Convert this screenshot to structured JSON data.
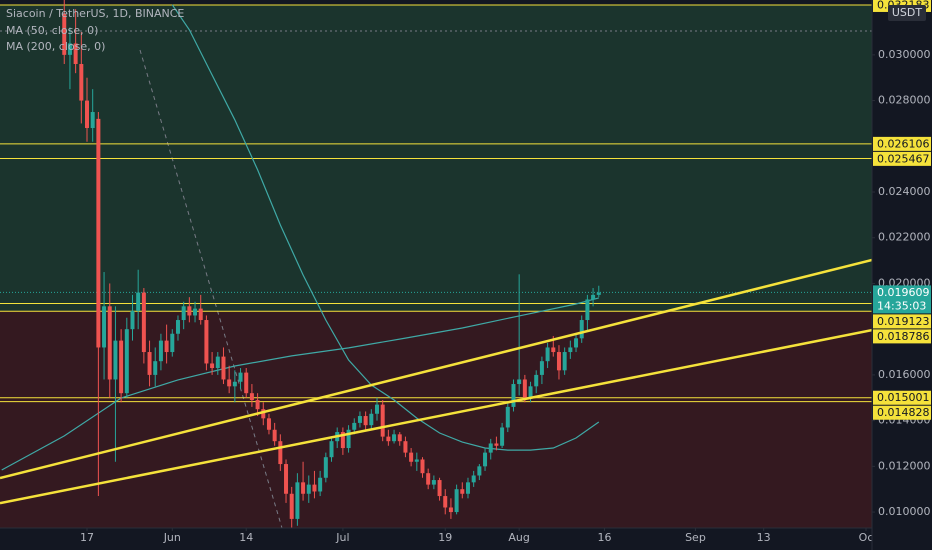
{
  "chart_data": {
    "type": "candlestick",
    "title": "Siacoin / TetherUS, 1D, BINANCE",
    "currency": "USDT",
    "x": [
      0,
      1,
      2,
      3,
      4,
      5,
      6,
      7,
      8,
      9,
      10,
      11,
      12,
      13,
      14,
      15,
      16,
      17,
      18,
      19,
      20,
      21,
      22,
      23,
      24,
      25,
      26,
      27,
      28,
      29,
      30,
      31,
      32,
      33,
      34,
      35,
      36,
      37,
      38,
      39,
      40,
      41,
      42,
      43,
      44,
      45,
      46,
      47,
      48,
      49,
      50,
      51,
      52,
      53,
      54,
      55,
      56,
      57,
      58,
      59,
      60,
      61,
      62,
      63,
      64,
      65,
      66,
      67,
      68,
      69,
      70,
      71,
      72,
      73,
      74,
      75,
      76,
      77,
      78,
      79,
      80,
      81,
      82,
      83,
      84,
      85,
      86,
      87,
      88,
      89,
      90,
      91,
      92,
      93,
      94
    ],
    "open": [
      0.0318,
      0.03,
      0.0305,
      0.0296,
      0.028,
      0.0268,
      0.0272,
      0.0172,
      0.019,
      0.0158,
      0.0175,
      0.0152,
      0.018,
      0.0188,
      0.0196,
      0.017,
      0.016,
      0.0166,
      0.0175,
      0.017,
      0.0178,
      0.0184,
      0.019,
      0.0186,
      0.0189,
      0.0184,
      0.0165,
      0.0163,
      0.0168,
      0.0158,
      0.0155,
      0.0157,
      0.0161,
      0.0152,
      0.0149,
      0.0145,
      0.0141,
      0.0136,
      0.0131,
      0.0121,
      0.0108,
      0.0097,
      0.0113,
      0.0108,
      0.0112,
      0.0109,
      0.0115,
      0.0124,
      0.0131,
      0.0135,
      0.0128,
      0.0136,
      0.0139,
      0.0142,
      0.0138,
      0.0143,
      0.0147,
      0.0133,
      0.0131,
      0.0134,
      0.0131,
      0.0126,
      0.0122,
      0.0123,
      0.0117,
      0.0112,
      0.0114,
      0.0107,
      0.0102,
      0.01,
      0.011,
      0.0108,
      0.0113,
      0.0116,
      0.012,
      0.0126,
      0.013,
      0.0129,
      0.0137,
      0.0146,
      0.0156,
      0.0158,
      0.015,
      0.0155,
      0.016,
      0.0166,
      0.0172,
      0.017,
      0.0162,
      0.017,
      0.0172,
      0.0176,
      0.0184,
      0.0193,
      0.0195
    ],
    "high": [
      0.033,
      0.0312,
      0.032,
      0.031,
      0.029,
      0.0285,
      0.0275,
      0.0205,
      0.02,
      0.019,
      0.018,
      0.0185,
      0.0195,
      0.0206,
      0.0198,
      0.0175,
      0.0172,
      0.0178,
      0.0182,
      0.018,
      0.0186,
      0.0192,
      0.0194,
      0.0192,
      0.0195,
      0.0186,
      0.017,
      0.017,
      0.0172,
      0.0164,
      0.0162,
      0.0163,
      0.0163,
      0.0156,
      0.0152,
      0.0148,
      0.0143,
      0.0139,
      0.0134,
      0.0123,
      0.0111,
      0.0117,
      0.0122,
      0.0116,
      0.0118,
      0.0118,
      0.0126,
      0.0133,
      0.0137,
      0.0137,
      0.0138,
      0.0141,
      0.0144,
      0.0144,
      0.0145,
      0.015,
      0.0149,
      0.0136,
      0.0136,
      0.0135,
      0.0133,
      0.0128,
      0.0126,
      0.0124,
      0.0119,
      0.0116,
      0.0115,
      0.011,
      0.0106,
      0.0112,
      0.0113,
      0.0115,
      0.0118,
      0.0121,
      0.0128,
      0.0132,
      0.0133,
      0.0139,
      0.0148,
      0.0158,
      0.0204,
      0.016,
      0.0157,
      0.0162,
      0.0168,
      0.0174,
      0.0177,
      0.0173,
      0.0172,
      0.0175,
      0.0178,
      0.0186,
      0.0195,
      0.0198,
      0.0199
    ],
    "low": [
      0.0296,
      0.0285,
      0.0292,
      0.027,
      0.0262,
      0.0262,
      0.0107,
      0.0158,
      0.015,
      0.0122,
      0.0148,
      0.015,
      0.0175,
      0.018,
      0.0165,
      0.0155,
      0.0155,
      0.0162,
      0.0165,
      0.0168,
      0.0175,
      0.018,
      0.0183,
      0.0183,
      0.0182,
      0.0162,
      0.016,
      0.016,
      0.0156,
      0.0152,
      0.0148,
      0.0154,
      0.015,
      0.0146,
      0.0142,
      0.0138,
      0.0134,
      0.0129,
      0.0118,
      0.0104,
      0.0092,
      0.0094,
      0.0105,
      0.0104,
      0.0106,
      0.0107,
      0.0113,
      0.0122,
      0.0128,
      0.0125,
      0.0126,
      0.0134,
      0.0137,
      0.0136,
      0.0136,
      0.014,
      0.0131,
      0.0129,
      0.013,
      0.0129,
      0.0124,
      0.012,
      0.0118,
      0.0115,
      0.011,
      0.011,
      0.0105,
      0.0099,
      0.0097,
      0.0099,
      0.0106,
      0.0106,
      0.0111,
      0.0114,
      0.0118,
      0.0123,
      0.0127,
      0.0128,
      0.0135,
      0.0144,
      0.0151,
      0.0148,
      0.0148,
      0.0152,
      0.0156,
      0.0163,
      0.0168,
      0.0158,
      0.016,
      0.0167,
      0.017,
      0.0174,
      0.0179,
      0.019,
      0.0194
    ],
    "close": [
      0.03,
      0.0305,
      0.0296,
      0.028,
      0.0268,
      0.0275,
      0.0172,
      0.019,
      0.0158,
      0.0175,
      0.0152,
      0.018,
      0.0188,
      0.0196,
      0.017,
      0.016,
      0.0166,
      0.0175,
      0.017,
      0.0178,
      0.0184,
      0.019,
      0.0186,
      0.0189,
      0.0184,
      0.0165,
      0.0163,
      0.0168,
      0.0158,
      0.0155,
      0.0157,
      0.0161,
      0.0152,
      0.0149,
      0.0145,
      0.0141,
      0.0136,
      0.0131,
      0.0121,
      0.0108,
      0.0097,
      0.0113,
      0.0108,
      0.0112,
      0.0109,
      0.0115,
      0.0124,
      0.0131,
      0.0135,
      0.0128,
      0.0136,
      0.0139,
      0.0142,
      0.0138,
      0.0143,
      0.0147,
      0.0133,
      0.0131,
      0.0134,
      0.0131,
      0.0126,
      0.0122,
      0.0123,
      0.0117,
      0.0112,
      0.0114,
      0.0107,
      0.0102,
      0.01,
      0.011,
      0.0108,
      0.0113,
      0.0116,
      0.012,
      0.0126,
      0.013,
      0.0129,
      0.0137,
      0.0146,
      0.0156,
      0.0158,
      0.015,
      0.0155,
      0.016,
      0.0166,
      0.0172,
      0.017,
      0.0162,
      0.017,
      0.0172,
      0.0176,
      0.0184,
      0.0193,
      0.0195,
      0.0196
    ],
    "up_color": "#26a69a",
    "down_color": "#ef5350",
    "series": [
      {
        "name": "MA (50, close, 0)",
        "color": "#3fa9a6",
        "x": [
          19,
          22,
          26,
          30,
          34,
          38,
          42,
          46,
          50,
          54,
          58,
          62,
          66,
          70,
          74,
          78,
          82,
          86,
          90,
          94
        ],
        "values": [
          0.03219,
          0.03109,
          0.02912,
          0.02716,
          0.02497,
          0.02256,
          0.02037,
          0.0184,
          0.01665,
          0.01556,
          0.0149,
          0.01411,
          0.01346,
          0.01306,
          0.0128,
          0.01271,
          0.01271,
          0.0128,
          0.01324,
          0.01394
        ]
      },
      {
        "name": "MA (200, close, 0)",
        "color": "#3fa9a6",
        "x": [
          -11,
          0,
          10,
          20,
          30,
          40,
          50,
          60,
          70,
          80,
          90,
          94
        ],
        "values": [
          0.01184,
          0.01333,
          0.01499,
          0.01578,
          0.01639,
          0.01683,
          0.01718,
          0.01761,
          0.01805,
          0.01858,
          0.0191,
          0.01937
        ]
      }
    ],
    "trendlines": [
      {
        "x": [
          -11.3,
          142.05
        ],
        "values": [
          0.01149,
          0.02103
        ]
      },
      {
        "x": [
          -11.3,
          142.05
        ],
        "values": [
          0.01039,
          0.01796
        ]
      }
    ],
    "trend_color": "#f5e23b",
    "levels": [
      0.032183,
      0.026106,
      0.025467,
      0.019123,
      0.018786,
      0.015001,
      0.014828
    ],
    "level_color": "#f5e23b",
    "zones": [
      {
        "top": 0.032183,
        "bottom": 0.018786,
        "color": "#1d3a2f"
      },
      {
        "top": 0.018786,
        "color": "#3b1a20"
      }
    ],
    "last_price": 0.019609,
    "countdown": "14:35:03",
    "xlim": [
      -11.3,
      142.05
    ],
    "ylim": [
      0.00834,
      0.0324
    ],
    "xticks": [
      {
        "value": 4,
        "label": "17"
      },
      {
        "value": 19,
        "label": "Jun"
      },
      {
        "value": 32,
        "label": "14"
      },
      {
        "value": 49,
        "label": "Jul"
      },
      {
        "value": 67,
        "label": "19"
      },
      {
        "value": 80,
        "label": "Aug"
      },
      {
        "value": 95,
        "label": "16"
      },
      {
        "value": 111,
        "label": "Sep"
      },
      {
        "value": 123,
        "label": "13"
      },
      {
        "value": 141,
        "label": "Oc"
      }
    ],
    "yticks": [
      {
        "value": 0.01,
        "label": "0.010000"
      },
      {
        "value": 0.012,
        "label": "0.012000"
      },
      {
        "value": 0.014,
        "label": "0.014000"
      },
      {
        "value": 0.016,
        "label": "0.016000"
      },
      {
        "value": 0.02,
        "label": "0.020000"
      },
      {
        "value": 0.022,
        "label": "0.022000"
      },
      {
        "value": 0.024,
        "label": "0.024000"
      },
      {
        "value": 0.028,
        "label": "0.028000"
      },
      {
        "value": 0.03,
        "label": "0.030000"
      }
    ]
  }
}
